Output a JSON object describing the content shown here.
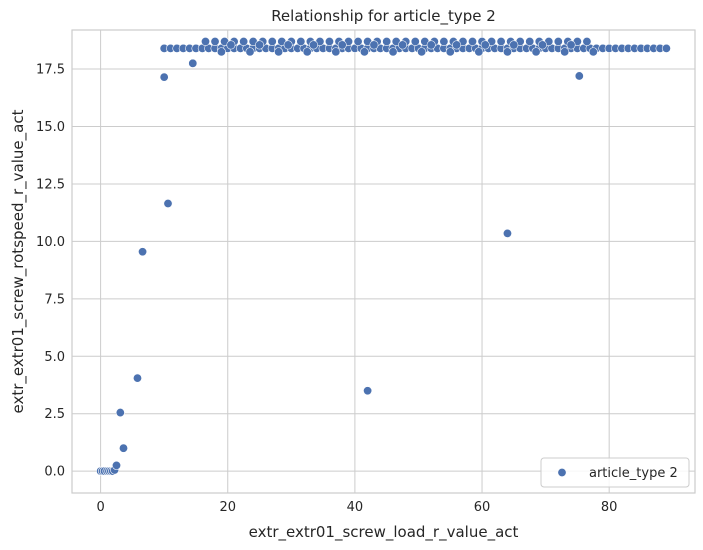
{
  "chart_data": {
    "type": "scatter",
    "title": "Relationship for article_type 2",
    "xlabel": "extr_extr01_screw_load_r_value_act",
    "ylabel": "extr_extr01_screw_rotspeed_r_value_act",
    "xlim": [
      -4.5,
      93.5
    ],
    "ylim": [
      -0.95,
      19.2
    ],
    "x_ticks": [
      0,
      20,
      40,
      60,
      80
    ],
    "x_tick_labels": [
      "0",
      "20",
      "40",
      "60",
      "80"
    ],
    "y_ticks": [
      0.0,
      2.5,
      5.0,
      7.5,
      10.0,
      12.5,
      15.0,
      17.5
    ],
    "y_tick_labels": [
      "0.0",
      "2.5",
      "5.0",
      "7.5",
      "10.0",
      "12.5",
      "15.0",
      "17.5"
    ],
    "grid": true,
    "legend_position": "lower-right",
    "series": [
      {
        "name": "article_type 2",
        "color": "#4c72b0",
        "points": [
          [
            0.0,
            0.0
          ],
          [
            0.3,
            0.0
          ],
          [
            0.6,
            0.0
          ],
          [
            1.0,
            0.0
          ],
          [
            1.3,
            0.0
          ],
          [
            1.6,
            0.0
          ],
          [
            1.9,
            0.0
          ],
          [
            2.2,
            0.05
          ],
          [
            2.5,
            0.25
          ],
          [
            3.1,
            2.55
          ],
          [
            3.6,
            1.0
          ],
          [
            5.8,
            4.05
          ],
          [
            6.6,
            9.55
          ],
          [
            10.0,
            17.15
          ],
          [
            10.6,
            11.65
          ],
          [
            14.5,
            17.75
          ],
          [
            42.0,
            3.5
          ],
          [
            64.0,
            10.35
          ],
          [
            75.3,
            17.2
          ],
          [
            10.0,
            18.4
          ],
          [
            11.0,
            18.4
          ],
          [
            12.0,
            18.4
          ],
          [
            13.0,
            18.4
          ],
          [
            14.0,
            18.4
          ],
          [
            15.0,
            18.4
          ],
          [
            16.0,
            18.4
          ],
          [
            17.0,
            18.4
          ],
          [
            18.0,
            18.4
          ],
          [
            19.0,
            18.4
          ],
          [
            20.0,
            18.4
          ],
          [
            21.0,
            18.4
          ],
          [
            22.0,
            18.4
          ],
          [
            23.0,
            18.4
          ],
          [
            24.0,
            18.4
          ],
          [
            25.0,
            18.4
          ],
          [
            26.0,
            18.4
          ],
          [
            27.0,
            18.4
          ],
          [
            28.0,
            18.4
          ],
          [
            29.0,
            18.4
          ],
          [
            30.0,
            18.4
          ],
          [
            31.0,
            18.4
          ],
          [
            32.0,
            18.4
          ],
          [
            33.0,
            18.4
          ],
          [
            34.0,
            18.4
          ],
          [
            35.0,
            18.4
          ],
          [
            36.0,
            18.4
          ],
          [
            37.0,
            18.4
          ],
          [
            38.0,
            18.4
          ],
          [
            39.0,
            18.4
          ],
          [
            40.0,
            18.4
          ],
          [
            41.0,
            18.4
          ],
          [
            42.0,
            18.4
          ],
          [
            43.0,
            18.4
          ],
          [
            44.0,
            18.4
          ],
          [
            45.0,
            18.4
          ],
          [
            46.0,
            18.4
          ],
          [
            47.0,
            18.4
          ],
          [
            48.0,
            18.4
          ],
          [
            49.0,
            18.4
          ],
          [
            50.0,
            18.4
          ],
          [
            51.0,
            18.4
          ],
          [
            52.0,
            18.4
          ],
          [
            53.0,
            18.4
          ],
          [
            54.0,
            18.4
          ],
          [
            55.0,
            18.4
          ],
          [
            56.0,
            18.4
          ],
          [
            57.0,
            18.4
          ],
          [
            58.0,
            18.4
          ],
          [
            59.0,
            18.4
          ],
          [
            60.0,
            18.4
          ],
          [
            61.0,
            18.4
          ],
          [
            62.0,
            18.4
          ],
          [
            63.0,
            18.4
          ],
          [
            64.0,
            18.4
          ],
          [
            65.0,
            18.4
          ],
          [
            66.0,
            18.4
          ],
          [
            67.0,
            18.4
          ],
          [
            68.0,
            18.4
          ],
          [
            69.0,
            18.4
          ],
          [
            70.0,
            18.4
          ],
          [
            71.0,
            18.4
          ],
          [
            72.0,
            18.4
          ],
          [
            73.0,
            18.4
          ],
          [
            74.0,
            18.4
          ],
          [
            75.0,
            18.4
          ],
          [
            76.0,
            18.4
          ],
          [
            77.0,
            18.4
          ],
          [
            78.0,
            18.4
          ],
          [
            79.0,
            18.4
          ],
          [
            80.0,
            18.4
          ],
          [
            81.0,
            18.4
          ],
          [
            82.0,
            18.4
          ],
          [
            83.0,
            18.4
          ],
          [
            84.0,
            18.4
          ],
          [
            85.0,
            18.4
          ],
          [
            86.0,
            18.4
          ],
          [
            87.0,
            18.4
          ],
          [
            88.0,
            18.4
          ],
          [
            89.0,
            18.4
          ],
          [
            16.5,
            18.7
          ],
          [
            18.0,
            18.7
          ],
          [
            19.5,
            18.7
          ],
          [
            21.0,
            18.7
          ],
          [
            22.5,
            18.7
          ],
          [
            24.0,
            18.7
          ],
          [
            25.5,
            18.7
          ],
          [
            27.0,
            18.7
          ],
          [
            28.5,
            18.7
          ],
          [
            30.0,
            18.7
          ],
          [
            31.5,
            18.7
          ],
          [
            33.0,
            18.7
          ],
          [
            34.5,
            18.7
          ],
          [
            36.0,
            18.7
          ],
          [
            37.5,
            18.7
          ],
          [
            39.0,
            18.7
          ],
          [
            40.5,
            18.7
          ],
          [
            42.0,
            18.7
          ],
          [
            43.5,
            18.7
          ],
          [
            45.0,
            18.7
          ],
          [
            46.5,
            18.7
          ],
          [
            48.0,
            18.7
          ],
          [
            49.5,
            18.7
          ],
          [
            51.0,
            18.7
          ],
          [
            52.5,
            18.7
          ],
          [
            54.0,
            18.7
          ],
          [
            55.5,
            18.7
          ],
          [
            57.0,
            18.7
          ],
          [
            58.5,
            18.7
          ],
          [
            60.0,
            18.7
          ],
          [
            61.5,
            18.7
          ],
          [
            63.0,
            18.7
          ],
          [
            64.5,
            18.7
          ],
          [
            66.0,
            18.7
          ],
          [
            67.5,
            18.7
          ],
          [
            69.0,
            18.7
          ],
          [
            70.5,
            18.7
          ],
          [
            72.0,
            18.7
          ],
          [
            73.5,
            18.7
          ],
          [
            75.0,
            18.7
          ],
          [
            76.5,
            18.7
          ],
          [
            20.5,
            18.55
          ],
          [
            25.0,
            18.55
          ],
          [
            29.5,
            18.55
          ],
          [
            33.5,
            18.55
          ],
          [
            38.0,
            18.55
          ],
          [
            43.0,
            18.55
          ],
          [
            47.5,
            18.55
          ],
          [
            52.0,
            18.55
          ],
          [
            56.0,
            18.55
          ],
          [
            60.5,
            18.55
          ],
          [
            65.0,
            18.55
          ],
          [
            69.5,
            18.55
          ],
          [
            74.0,
            18.55
          ],
          [
            19.0,
            18.25
          ],
          [
            23.5,
            18.25
          ],
          [
            28.0,
            18.25
          ],
          [
            32.5,
            18.25
          ],
          [
            37.0,
            18.25
          ],
          [
            41.5,
            18.25
          ],
          [
            46.0,
            18.25
          ],
          [
            50.5,
            18.25
          ],
          [
            55.0,
            18.25
          ],
          [
            59.5,
            18.25
          ],
          [
            64.0,
            18.25
          ],
          [
            68.5,
            18.25
          ],
          [
            73.0,
            18.25
          ],
          [
            77.5,
            18.25
          ]
        ]
      }
    ]
  }
}
